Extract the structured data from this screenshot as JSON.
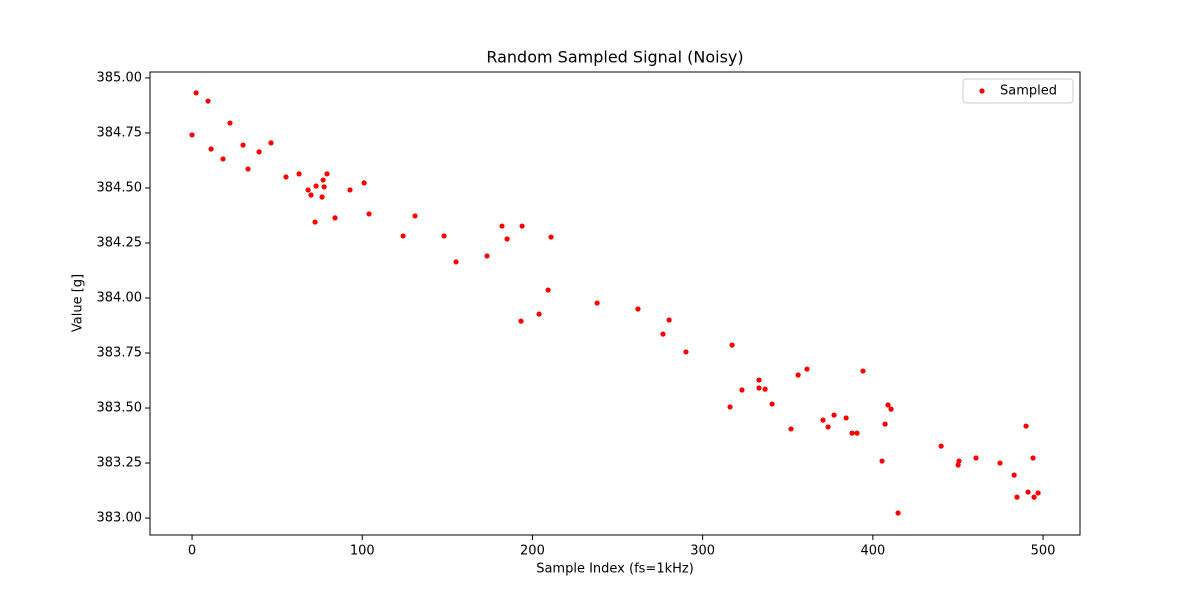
{
  "chart_data": {
    "type": "scatter",
    "title": "Random Sampled Signal (Noisy)",
    "x_label": "Sample Index (fs=1kHz)",
    "y_label": "Value [g]",
    "xlim": [
      -24.7,
      521.7
    ],
    "ylim": [
      382.923,
      385.027
    ],
    "xticks": [
      0,
      100,
      200,
      300,
      400,
      500
    ],
    "yticks": [
      {
        "value": 383,
        "label": "383.00"
      },
      383.25,
      {
        "value": 383.5,
        "label": "383.50"
      },
      383.75,
      {
        "value": 384,
        "label": "384.00"
      },
      384.25,
      {
        "value": 384.5,
        "label": "384.50"
      },
      384.75,
      {
        "value": 385,
        "label": "385.00"
      }
    ],
    "legend": "upper right",
    "series": [
      {
        "name": "Sampled",
        "color": "#ff0000",
        "x": [
          0,
          2.4,
          9.4,
          11.2,
          18.2,
          22.3,
          30.0,
          32.9,
          39.4,
          46.4,
          55.2,
          62.9,
          68.2,
          69.9,
          72.9,
          72.3,
          76.4,
          77.0,
          77.6,
          79.3,
          84.0,
          92.8,
          101.1,
          104.0,
          124.0,
          131.0,
          148.1,
          155.1,
          173.3,
          182.1,
          185.1,
          193.3,
          193.9,
          203.9,
          209.2,
          210.9,
          238.0,
          262.0,
          276.7,
          280.3,
          290.2,
          316.1,
          317.3,
          323.1,
          333.1,
          333.1,
          336.7,
          340.8,
          351.9,
          356.1,
          361.3,
          370.7,
          373.7,
          377.2,
          384.3,
          387.8,
          390.7,
          394.2,
          405.4,
          407.2,
          408.9,
          410.7,
          414.8,
          440.1,
          450.1,
          450.6,
          460.6,
          474.7,
          483.0,
          484.7,
          490.0,
          491.2,
          494.1,
          494.7,
          497.1
        ],
        "values": [
          384.741,
          384.932,
          384.895,
          384.677,
          384.632,
          384.795,
          384.695,
          384.586,
          384.664,
          384.705,
          384.55,
          384.564,
          384.491,
          384.468,
          384.509,
          384.345,
          384.459,
          384.536,
          384.505,
          384.564,
          384.364,
          384.491,
          384.523,
          384.382,
          384.282,
          384.373,
          384.282,
          384.164,
          384.191,
          384.327,
          384.268,
          383.895,
          384.327,
          383.927,
          384.036,
          384.277,
          383.977,
          383.95,
          383.836,
          383.9,
          383.755,
          383.505,
          383.786,
          383.582,
          383.627,
          383.591,
          383.586,
          383.518,
          383.405,
          383.65,
          383.677,
          383.445,
          383.414,
          383.468,
          383.455,
          383.386,
          383.386,
          383.668,
          383.259,
          383.427,
          383.514,
          383.495,
          383.023,
          383.327,
          383.241,
          383.259,
          383.273,
          383.25,
          383.195,
          383.095,
          383.418,
          383.118,
          383.273,
          383.095,
          383.114
        ]
      }
    ]
  }
}
